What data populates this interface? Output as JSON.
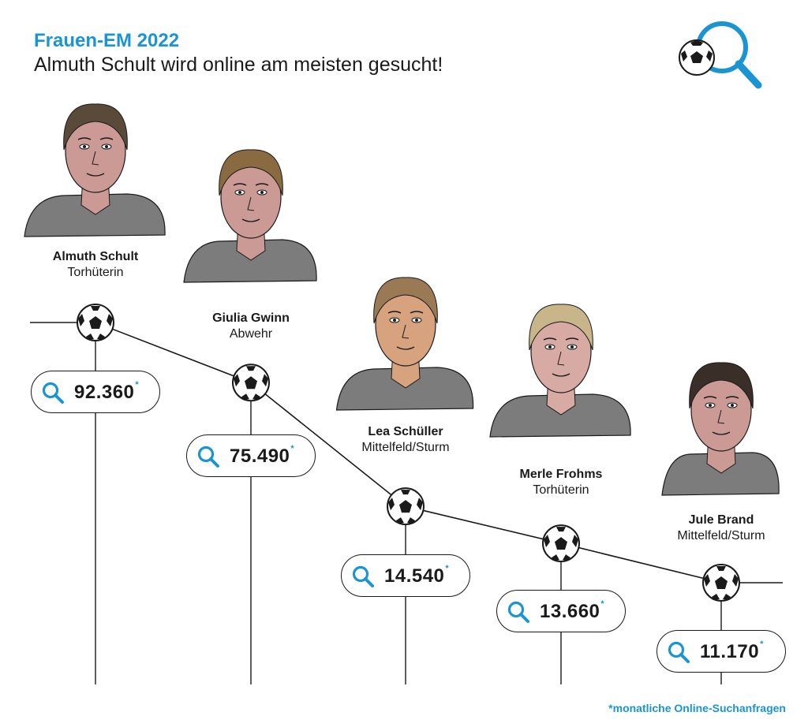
{
  "header": {
    "title": "Frauen-EM 2022",
    "subtitle": "Almuth Schult wird online am meisten gesucht!"
  },
  "footnote": "*monatliche Online-Suchanfragen",
  "colors": {
    "accent": "#1a95d1",
    "line": "#1a1a1a",
    "shirt": "#7c7c7c",
    "skin": "#c9958f"
  },
  "icons": {
    "logo": "football-magnifier-icon",
    "pill": "magnifier-icon",
    "marker": "football-icon"
  },
  "chart_data": {
    "type": "line",
    "title": "Almuth Schult wird online am meisten gesucht!",
    "unit": "*monatliche Online-Suchanfragen",
    "categories": [
      "Almuth Schult",
      "Giulia Gwinn",
      "Lea Schüller",
      "Merle Frohms",
      "Jule Brand"
    ],
    "roles": [
      "Torhüterin",
      "Abwehr",
      "Mittelfeld/Sturm",
      "Torhüterin",
      "Mittelfeld/Sturm"
    ],
    "values": [
      92360,
      75490,
      14540,
      13660,
      11170
    ],
    "labels": [
      "92.360",
      "75.490",
      "14.540",
      "13.660",
      "11.170"
    ],
    "value_suffix": "*"
  }
}
